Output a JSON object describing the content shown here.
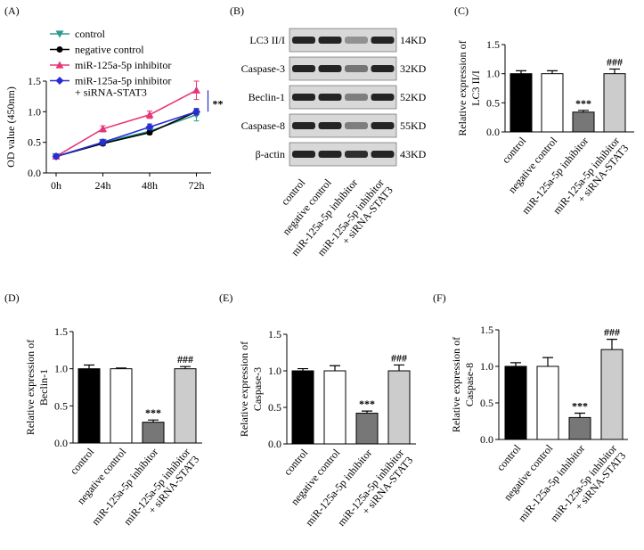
{
  "chart_data": [
    {
      "type": "line",
      "label": "(A)",
      "ylabel": "OD value (450nm)",
      "categories": [
        "0h",
        "24h",
        "48h",
        "72h"
      ],
      "ylim": [
        0,
        1.5
      ],
      "yticks": [
        {
          "value": 0,
          "label": "0.0"
        },
        {
          "value": 0.5,
          "label": "0.5"
        },
        {
          "value": 1,
          "label": "1.0"
        },
        {
          "value": 1.5,
          "label": "1.5"
        }
      ],
      "series": [
        {
          "name": "control",
          "color": "#2a9d8f",
          "marker": "triangle-down",
          "values": [
            0.27,
            0.5,
            0.68,
            0.95
          ],
          "errors": [
            0.02,
            0.05,
            0.03,
            0.1
          ]
        },
        {
          "name": "negative control",
          "color": "#000000",
          "marker": "circle",
          "values": [
            0.27,
            0.48,
            0.66,
            1.0
          ],
          "errors": [
            0.02,
            0.03,
            0.03,
            0.05
          ]
        },
        {
          "name": "miR-125a-5p inhibitor",
          "color": "#e6367a",
          "marker": "triangle-up",
          "values": [
            0.27,
            0.72,
            0.95,
            1.35
          ],
          "errors": [
            0.02,
            0.05,
            0.06,
            0.15
          ]
        },
        {
          "name": [
            "miR-125a-5p inhibitor",
            "+ siRNA-STAT3"
          ],
          "color": "#2b2bd6",
          "marker": "diamond",
          "values": [
            0.27,
            0.5,
            0.75,
            1.0
          ],
          "errors": [
            0.02,
            0.04,
            0.05,
            0.05
          ]
        }
      ],
      "annotation": "**"
    },
    {
      "type": "bar",
      "label": "(C)",
      "ylabel": [
        "Relative expression of",
        "LC3 II/I"
      ],
      "categories": [
        "control",
        "negative control",
        "miR-125a-5p inhibitor",
        [
          "miR-125a-5p inhibitor",
          "+ siRNA-STAT3"
        ]
      ],
      "values": [
        1.0,
        1.0,
        0.34,
        1.0
      ],
      "errors": [
        0.05,
        0.05,
        0.03,
        0.08
      ],
      "colors": [
        "#000000",
        "#ffffff",
        "#777777",
        "#cccccc"
      ],
      "annotations": [
        null,
        null,
        "***",
        "###"
      ],
      "ylim": [
        0,
        1.5
      ],
      "yticks": [
        {
          "value": 0,
          "label": "0.0"
        },
        {
          "value": 0.5,
          "label": "0.5"
        },
        {
          "value": 1,
          "label": "1.0"
        },
        {
          "value": 1.5,
          "label": "1.5"
        }
      ]
    },
    {
      "type": "bar",
      "label": "(D)",
      "ylabel": [
        "Relative expression of",
        "Beclin-1"
      ],
      "categories": [
        "control",
        "negative control",
        "miR-125a-5p inhibitor",
        [
          "miR-125a-5p inhibitor",
          "+ siRNA-STAT3"
        ]
      ],
      "values": [
        1.0,
        1.0,
        0.28,
        1.0
      ],
      "errors": [
        0.05,
        0.01,
        0.03,
        0.03
      ],
      "colors": [
        "#000000",
        "#ffffff",
        "#777777",
        "#cccccc"
      ],
      "annotations": [
        null,
        null,
        "***",
        "###"
      ],
      "ylim": [
        0,
        1.5
      ],
      "yticks": [
        {
          "value": 0,
          "label": "0.0"
        },
        {
          "value": 0.5,
          "label": "0.5"
        },
        {
          "value": 1,
          "label": "1.0"
        },
        {
          "value": 1.5,
          "label": "1.5"
        }
      ]
    },
    {
      "type": "bar",
      "label": "(E)",
      "ylabel": [
        "Relative expression of",
        "Caspase-3"
      ],
      "categories": [
        "control",
        "negative control",
        "miR-125a-5p inhibitor",
        [
          "miR-125a-5p inhibitor",
          "+ siRNA-STAT3"
        ]
      ],
      "values": [
        1.0,
        1.0,
        0.42,
        1.0
      ],
      "errors": [
        0.03,
        0.07,
        0.03,
        0.08
      ],
      "colors": [
        "#000000",
        "#ffffff",
        "#777777",
        "#cccccc"
      ],
      "annotations": [
        null,
        null,
        "***",
        "###"
      ],
      "ylim": [
        0,
        1.5
      ],
      "yticks": [
        {
          "value": 0,
          "label": "0.0"
        },
        {
          "value": 0.5,
          "label": "0.5"
        },
        {
          "value": 1,
          "label": "1.0"
        },
        {
          "value": 1.5,
          "label": "1.5"
        }
      ]
    },
    {
      "type": "bar",
      "label": "(F)",
      "ylabel": [
        "Relative expression of",
        "Caspase-8"
      ],
      "categories": [
        "control",
        "negative control",
        "miR-125a-5p inhibitor",
        [
          "miR-125a-5p inhibitor",
          "+ siRNA-STAT3"
        ]
      ],
      "values": [
        1.0,
        1.0,
        0.3,
        1.23
      ],
      "errors": [
        0.05,
        0.12,
        0.06,
        0.14
      ],
      "colors": [
        "#000000",
        "#ffffff",
        "#777777",
        "#cccccc"
      ],
      "annotations": [
        null,
        null,
        "***",
        "###"
      ],
      "ylim": [
        0,
        1.5
      ],
      "yticks": [
        {
          "value": 0,
          "label": "0.0"
        },
        {
          "value": 0.5,
          "label": "0.5"
        },
        {
          "value": 1,
          "label": "1.0"
        },
        {
          "value": 1.5,
          "label": "1.5"
        }
      ]
    }
  ],
  "blot": {
    "label": "(B)",
    "proteins": [
      "LC3 II/I",
      "Caspase-3",
      "Beclin-1",
      "Caspase-8",
      "β-actin"
    ],
    "sizes": [
      "14KD",
      "32KD",
      "52KD",
      "55KD",
      "43KD"
    ],
    "lanes": [
      "control",
      "negative control",
      "miR-125a-5p inhibitor",
      [
        "miR-125a-5p inhibitor",
        "+ siRNA-STAT3"
      ]
    ]
  }
}
